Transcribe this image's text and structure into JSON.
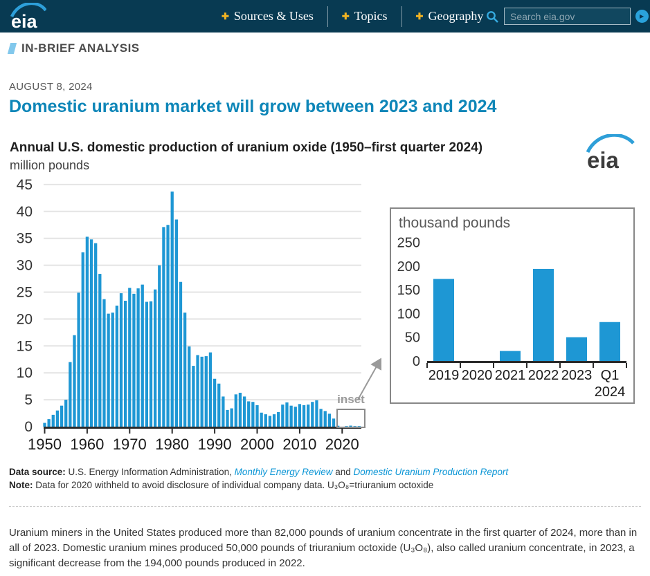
{
  "header": {
    "logo": "eia",
    "nav": [
      {
        "label": "Sources & Uses"
      },
      {
        "label": "Topics"
      },
      {
        "label": "Geography"
      }
    ],
    "nav_plus_icon": "✚",
    "search": {
      "placeholder": "Search eia.gov"
    }
  },
  "kicker": {
    "label": "IN-BRIEF ANALYSIS"
  },
  "article": {
    "date": "AUGUST 8, 2024",
    "headline": "Domestic uranium market will grow between 2023 and 2024",
    "paragraph": "Uranium miners in the United States produced more than 82,000 pounds of uranium concentrate in the first quarter of 2024, more than in all of 2023. Domestic uranium mines produced 50,000 pounds of triuranium octoxide (U₃O₈), also called uranium concentrate, in 2023, a significant decrease from the 194,000 pounds produced in 2022."
  },
  "figure": {
    "title": "Annual U.S. domestic production of uranium oxide (1950–first quarter 2024)",
    "unit_label": "million pounds",
    "logo": "eia",
    "inset_pointer_label": "inset",
    "source": {
      "label": "Data source:",
      "text": "U.S. Energy Information Administration,",
      "link1": "Monthly Energy Review",
      "conjunction": "and",
      "link2": "Domestic Uranium Production Report"
    },
    "note": {
      "label": "Note:",
      "text": "Data for 2020 withheld to avoid disclosure of individual company data. U₃O₈=triuranium octoxide"
    }
  },
  "colors": {
    "bar_blue": "#1e97d4",
    "headline_blue": "#0e86b8",
    "header_bg": "#083a52",
    "link_blue": "#0c96d6",
    "gridline": "#e4e4e4",
    "axis": "#2b2b2b",
    "inset_gray": "#878787"
  },
  "chart_data": [
    {
      "type": "bar",
      "title": "Annual U.S. domestic production of uranium oxide (1950–first quarter 2024)",
      "ylabel": "million pounds",
      "ylim": [
        0,
        45
      ],
      "ytick_step": 5,
      "grid": true,
      "x_start_year": 1950,
      "xticks": [
        1950,
        1960,
        1970,
        1980,
        1990,
        2000,
        2010,
        2020
      ],
      "values": [
        0.7,
        1.4,
        2.2,
        3.0,
        3.9,
        5.0,
        12.0,
        17.0,
        24.9,
        32.4,
        35.3,
        34.8,
        34.1,
        28.4,
        23.7,
        21.0,
        21.2,
        22.5,
        24.8,
        23.4,
        25.8,
        24.7,
        25.7,
        26.4,
        23.2,
        23.3,
        25.5,
        30.0,
        37.1,
        37.5,
        43.7,
        38.5,
        26.9,
        21.2,
        14.9,
        11.3,
        13.3,
        13.0,
        13.1,
        13.8,
        8.9,
        8.0,
        5.6,
        3.1,
        3.4,
        6.0,
        6.3,
        5.6,
        4.7,
        4.6,
        4.0,
        2.6,
        2.3,
        2.0,
        2.3,
        2.7,
        4.1,
        4.5,
        3.9,
        3.7,
        4.2,
        4.0,
        4.1,
        4.6,
        4.9,
        3.3,
        2.9,
        2.4,
        1.5,
        0.17,
        null,
        0.02,
        0.19,
        0.05,
        0.08
      ]
    },
    {
      "type": "bar",
      "title": "thousand pounds",
      "categories": [
        "2019",
        "2020",
        "2021",
        "2022",
        "2023",
        "Q1 2024"
      ],
      "values": [
        173,
        null,
        21,
        194,
        50,
        82
      ],
      "ylim": [
        0,
        250
      ],
      "ytick_step": 50,
      "grid": false
    }
  ]
}
